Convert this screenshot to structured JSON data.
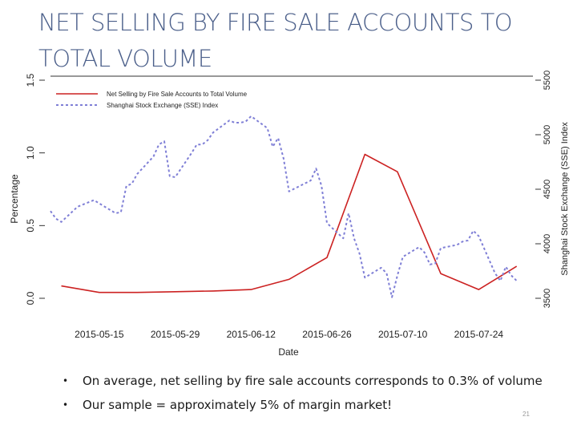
{
  "slide": {
    "title": "NET SELLING BY FIRE SALE ACCOUNTS TO TOTAL VOLUME",
    "bullets": [
      "On average, net selling by fire sale accounts corresponds to 0.3% of volume",
      "Our sample = approximately 5% of margin market!"
    ],
    "bullet_marker": "•",
    "page_number": "21"
  },
  "chart_data": {
    "type": "line",
    "xlabel": "Date",
    "ylabel": "Percentage",
    "ylabel_right": "Shanghai Stock Exchange (SSE) Index",
    "xlim": [
      "2015-05-06",
      "2015-08-03"
    ],
    "ylim": [
      0,
      1.5
    ],
    "ylim_right": [
      3500,
      5500
    ],
    "xticks": [
      "2015-05-15",
      "2015-05-29",
      "2015-06-12",
      "2015-06-26",
      "2015-07-10",
      "2015-07-24"
    ],
    "yticks": [
      "0.0",
      "0.5",
      "1.0",
      "1.5"
    ],
    "yticks_right": [
      "3500",
      "4000",
      "4500",
      "5000",
      "5500"
    ],
    "legend_position": "top-left",
    "colors": {
      "net_selling": "#cc2222",
      "sse": "#7f7fd6",
      "axis": "#333333"
    },
    "series": [
      {
        "name": "Net Selling by Fire Sale Accounts to Total Volume",
        "axis": "left",
        "style": "solid",
        "points": [
          [
            "2015-05-08",
            0.085
          ],
          [
            "2015-05-15",
            0.04
          ],
          [
            "2015-05-22",
            0.04
          ],
          [
            "2015-05-29",
            0.045
          ],
          [
            "2015-06-05",
            0.05
          ],
          [
            "2015-06-12",
            0.06
          ],
          [
            "2015-06-19",
            0.13
          ],
          [
            "2015-06-26",
            0.28
          ],
          [
            "2015-07-03",
            0.99
          ],
          [
            "2015-07-09",
            0.87
          ],
          [
            "2015-07-17",
            0.17
          ],
          [
            "2015-07-24",
            0.06
          ],
          [
            "2015-07-31",
            0.22
          ]
        ]
      },
      {
        "name": "Shanghai Stock Exchange (SSE) Index",
        "axis": "right",
        "style": "dotted",
        "points": [
          [
            "2015-05-06",
            4300
          ],
          [
            "2015-05-07",
            4230
          ],
          [
            "2015-05-08",
            4200
          ],
          [
            "2015-05-11",
            4340
          ],
          [
            "2015-05-13",
            4380
          ],
          [
            "2015-05-14",
            4400
          ],
          [
            "2015-05-15",
            4370
          ],
          [
            "2015-05-18",
            4280
          ],
          [
            "2015-05-19",
            4290
          ],
          [
            "2015-05-20",
            4530
          ],
          [
            "2015-05-21",
            4550
          ],
          [
            "2015-05-22",
            4640
          ],
          [
            "2015-05-25",
            4800
          ],
          [
            "2015-05-26",
            4910
          ],
          [
            "2015-05-27",
            4940
          ],
          [
            "2015-05-28",
            4620
          ],
          [
            "2015-05-29",
            4610
          ],
          [
            "2015-06-01",
            4830
          ],
          [
            "2015-06-02",
            4910
          ],
          [
            "2015-06-03",
            4910
          ],
          [
            "2015-06-04",
            4950
          ],
          [
            "2015-06-05",
            5020
          ],
          [
            "2015-06-08",
            5130
          ],
          [
            "2015-06-09",
            5110
          ],
          [
            "2015-06-10",
            5110
          ],
          [
            "2015-06-11",
            5120
          ],
          [
            "2015-06-12",
            5170
          ],
          [
            "2015-06-15",
            5060
          ],
          [
            "2015-06-16",
            4890
          ],
          [
            "2015-06-17",
            4970
          ],
          [
            "2015-06-18",
            4780
          ],
          [
            "2015-06-19",
            4480
          ],
          [
            "2015-06-23",
            4580
          ],
          [
            "2015-06-24",
            4690
          ],
          [
            "2015-06-25",
            4530
          ],
          [
            "2015-06-26",
            4190
          ],
          [
            "2015-06-29",
            4050
          ],
          [
            "2015-06-30",
            4280
          ],
          [
            "2015-07-01",
            4050
          ],
          [
            "2015-07-02",
            3910
          ],
          [
            "2015-07-03",
            3690
          ],
          [
            "2015-07-06",
            3780
          ],
          [
            "2015-07-07",
            3730
          ],
          [
            "2015-07-08",
            3510
          ],
          [
            "2015-07-09",
            3710
          ],
          [
            "2015-07-10",
            3880
          ],
          [
            "2015-07-13",
            3970
          ],
          [
            "2015-07-14",
            3920
          ],
          [
            "2015-07-15",
            3810
          ],
          [
            "2015-07-16",
            3820
          ],
          [
            "2015-07-17",
            3960
          ],
          [
            "2015-07-20",
            3990
          ],
          [
            "2015-07-21",
            4020
          ],
          [
            "2015-07-22",
            4030
          ],
          [
            "2015-07-23",
            4120
          ],
          [
            "2015-07-24",
            4070
          ],
          [
            "2015-07-27",
            3730
          ],
          [
            "2015-07-28",
            3660
          ],
          [
            "2015-07-29",
            3790
          ],
          [
            "2015-07-30",
            3710
          ],
          [
            "2015-07-31",
            3660
          ]
        ]
      }
    ]
  }
}
